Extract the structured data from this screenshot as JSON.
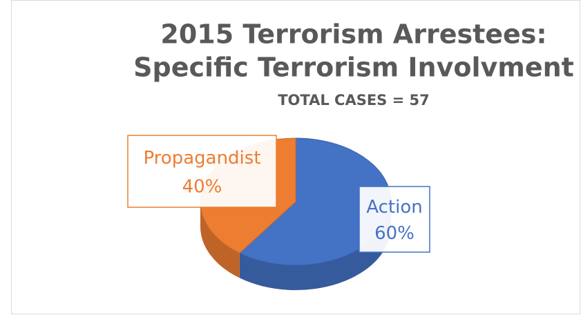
{
  "chart_data": {
    "type": "pie3d",
    "title": [
      "2015 Terrorism Arrestees:",
      "Specific Terrorism Involvment"
    ],
    "subtitle": "TOTAL CASES = 57",
    "categories": [
      "Action",
      "Propagandist"
    ],
    "values": [
      60,
      40
    ],
    "value_labels": [
      "60%",
      "40%"
    ],
    "colors": [
      "#4472c4",
      "#ed7d31"
    ]
  }
}
